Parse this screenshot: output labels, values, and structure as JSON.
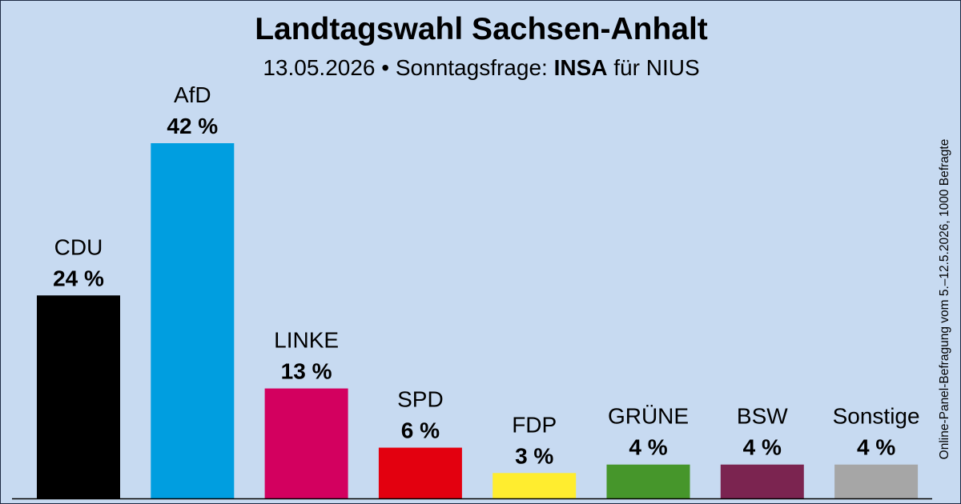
{
  "header": {
    "title": "Landtagswahl Sachsen-Anhalt",
    "date": "13.05.2026",
    "separator": "•",
    "poll_label": "Sonntagsfrage:",
    "institute": "INSA",
    "client": "für NIUS"
  },
  "side_note": "Online-Panel-Befragung vom 5.–12.5.2026, 1000 Befragte",
  "chart_data": {
    "type": "bar",
    "title": "Landtagswahl Sachsen-Anhalt",
    "categories": [
      "CDU",
      "AfD",
      "LINKE",
      "SPD",
      "FDP",
      "GRÜNE",
      "BSW",
      "Sonstige"
    ],
    "values": [
      24,
      42,
      13,
      6,
      3,
      4,
      4,
      4
    ],
    "value_labels": [
      "24 %",
      "42 %",
      "13 %",
      "6 %",
      "3 %",
      "4 %",
      "4 %",
      "4 %"
    ],
    "colors": [
      "#000000",
      "#009ee0",
      "#d3005f",
      "#e3000f",
      "#ffed2f",
      "#46962b",
      "#7b2450",
      "#a6a6a6"
    ],
    "ylim": [
      0,
      42
    ],
    "xlabel": "",
    "ylabel": "",
    "grid": false,
    "legend": "none"
  }
}
